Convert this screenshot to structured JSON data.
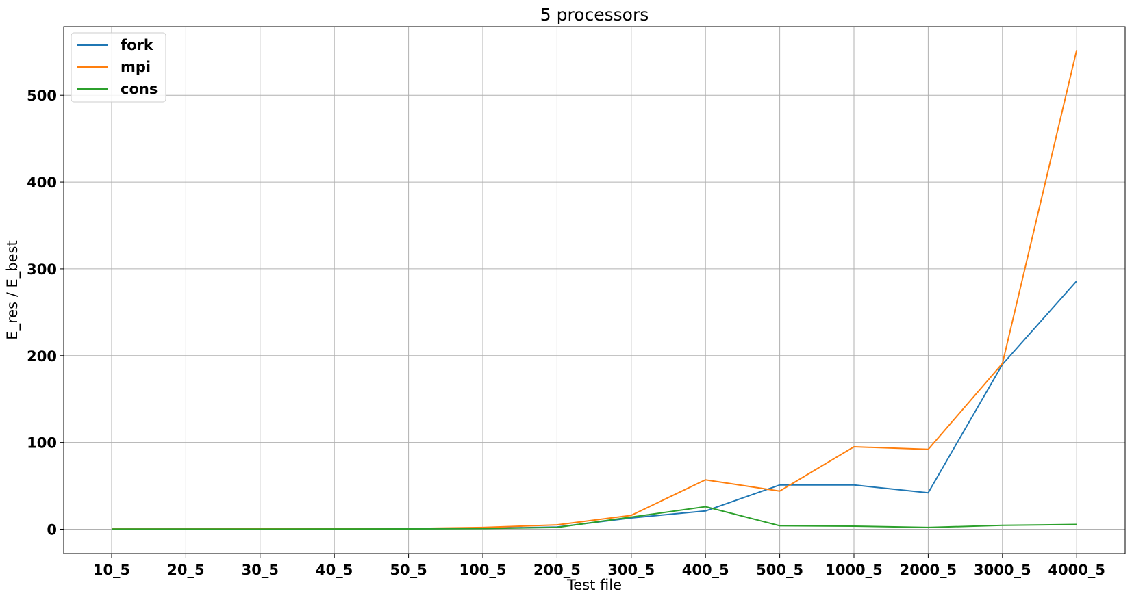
{
  "chart_data": {
    "type": "line",
    "title": "5 processors",
    "xlabel": "Test file",
    "ylabel": "E_res / E_best",
    "categories": [
      "10_5",
      "20_5",
      "30_5",
      "40_5",
      "50_5",
      "100_5",
      "200_5",
      "300_5",
      "400_5",
      "500_5",
      "1000_5",
      "2000_5",
      "3000_5",
      "4000_5"
    ],
    "yticks": [
      0,
      100,
      200,
      300,
      400,
      500
    ],
    "ylim": [
      -28,
      579
    ],
    "grid": true,
    "legend_position": "top-left",
    "series": [
      {
        "name": "fork",
        "color": "#1f77b4",
        "values": [
          0.2,
          0.3,
          0.3,
          0.3,
          0.5,
          1.0,
          2.5,
          13.0,
          21.0,
          51.0,
          51.0,
          42.0,
          190.0,
          286.0
        ]
      },
      {
        "name": "mpi",
        "color": "#ff7f0e",
        "values": [
          0.3,
          0.3,
          0.4,
          0.5,
          0.8,
          2.0,
          5.0,
          16.0,
          57.0,
          44.0,
          95.0,
          92.0,
          191.0,
          552.0
        ]
      },
      {
        "name": "cons",
        "color": "#2ca02c",
        "values": [
          0.2,
          0.2,
          0.2,
          0.3,
          0.4,
          0.8,
          2.0,
          14.0,
          26.0,
          4.0,
          3.5,
          2.0,
          4.5,
          5.5
        ]
      }
    ]
  }
}
